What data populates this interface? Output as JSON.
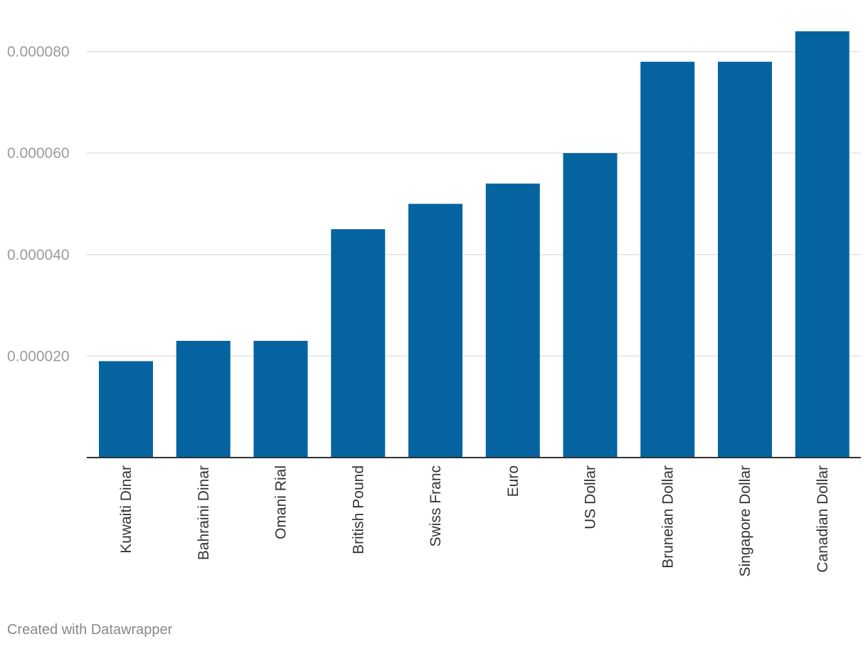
{
  "chart_data": {
    "type": "bar",
    "categories": [
      "Kuwaiti Dinar",
      "Bahraini Dinar",
      "Omani Rial",
      "British Pound",
      "Swiss Franc",
      "Euro",
      "US Dollar",
      "Bruneian Dollar",
      "Singapore Dollar",
      "Canadian Dollar"
    ],
    "values": [
      1.9e-05,
      2.3e-05,
      2.3e-05,
      4.5e-05,
      5e-05,
      5.4e-05,
      6e-05,
      7.8e-05,
      7.8e-05,
      8.4e-05
    ],
    "yticks": [
      2e-05,
      4e-05,
      6e-05,
      8e-05
    ],
    "ytick_labels": [
      "0.000020",
      "0.000040",
      "0.000060",
      "0.000080"
    ],
    "ylim": [
      0,
      8.4e-05
    ],
    "title": "",
    "xlabel": "",
    "ylabel": "",
    "grid": true,
    "bar_color": "#0563a0",
    "gridline_color": "#e2e2e2",
    "tick_label_color": "#9b9b9b",
    "category_label_color": "#333333"
  },
  "footer": {
    "credit": "Created with Datawrapper"
  }
}
